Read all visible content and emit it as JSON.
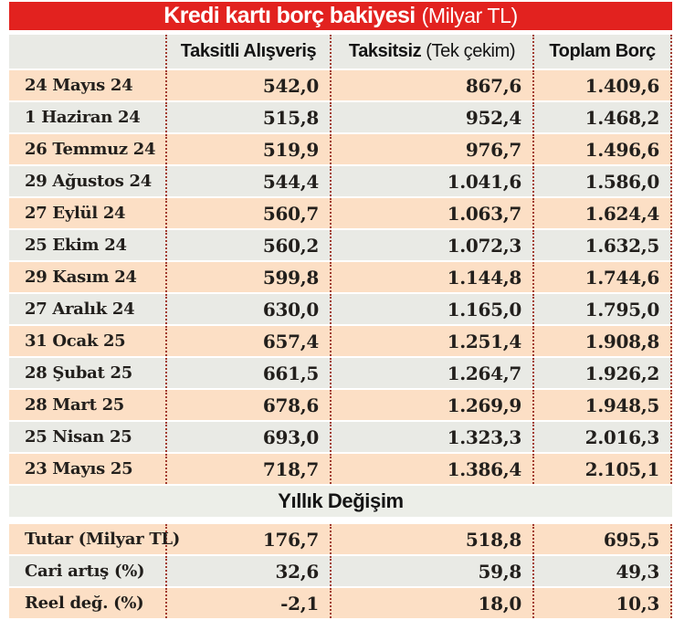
{
  "chart_data": {
    "type": "table",
    "title": "Kredi kartı borç bakiyesi",
    "title_unit": "(Milyar TL)",
    "columns": {
      "date": "",
      "c1": "Taksitli Alışveriş",
      "c2_bold": "Taksitsiz",
      "c2_light": "(Tek çekim)",
      "c3": "Toplam Borç"
    },
    "rows": [
      [
        "24 Mayıs 24",
        "542,0",
        "867,6",
        "1.409,6"
      ],
      [
        "1 Haziran 24",
        "515,8",
        "952,4",
        "1.468,2"
      ],
      [
        "26 Temmuz 24",
        "519,9",
        "976,7",
        "1.496,6"
      ],
      [
        "29 Ağustos 24",
        "544,4",
        "1.041,6",
        "1.586,0"
      ],
      [
        "27 Eylül 24",
        "560,7",
        "1.063,7",
        "1.624,4"
      ],
      [
        "25 Ekim 24",
        "560,2",
        "1.072,3",
        "1.632,5"
      ],
      [
        "29 Kasım 24",
        "599,8",
        "1.144,8",
        "1.744,6"
      ],
      [
        "27 Aralık 24",
        "630,0",
        "1.165,0",
        "1.795,0"
      ],
      [
        "31 Ocak 25",
        "657,4",
        "1.251,4",
        "1.908,8"
      ],
      [
        "28 Şubat 25",
        "661,5",
        "1.264,7",
        "1.926,2"
      ],
      [
        "28 Mart 25",
        "678,6",
        "1.269,9",
        "1.948,5"
      ],
      [
        "25 Nisan 25",
        "693,0",
        "1.323,3",
        "2.016,3"
      ],
      [
        "23 Mayıs 25",
        "718,7",
        "1.386,4",
        "2.105,1"
      ]
    ],
    "section_title": "Yıllık Değişim",
    "summary_rows": [
      [
        "Tutar (Milyar TL)",
        "176,7",
        "518,8",
        "695,5"
      ],
      [
        "Cari artış (%)",
        "32,6",
        "59,8",
        "49,3"
      ],
      [
        "Reel değ. (%)",
        "-2,1",
        "18,0",
        "10,3"
      ]
    ],
    "colors": {
      "red": "#e2221f",
      "peach": "#fcdfc5",
      "gray": "#e9eae5",
      "sectionbg": "#eceee8",
      "dot": "#a23b2e",
      "ink": "#221f1c"
    }
  }
}
